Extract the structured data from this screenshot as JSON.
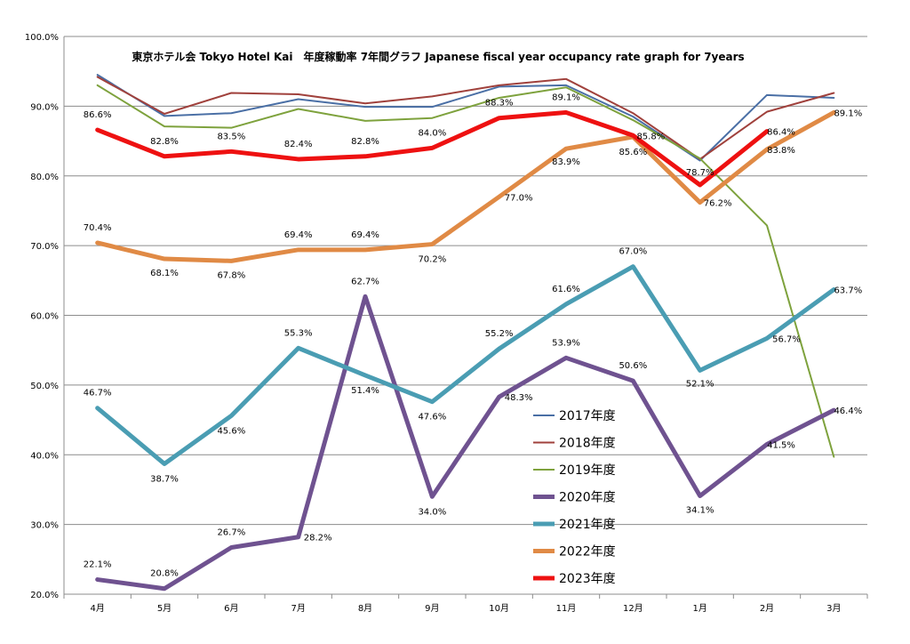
{
  "chart_data": {
    "type": "line",
    "title": "東京ホテル会 Tokyo Hotel Kai　年度稼動率 7年間グラフ Japanese fiscal year occupancy rate graph for 7years",
    "xlabel": "",
    "ylabel": "",
    "categories": [
      "4月",
      "5月",
      "6月",
      "7月",
      "8月",
      "9月",
      "10月",
      "11月",
      "12月",
      "1月",
      "2月",
      "3月"
    ],
    "ylim": [
      20,
      100
    ],
    "yticks": [
      "20.0%",
      "30.0%",
      "40.0%",
      "50.0%",
      "60.0%",
      "70.0%",
      "80.0%",
      "90.0%",
      "100.0%"
    ],
    "grid": true,
    "legend_position": "center-right",
    "series": [
      {
        "name": "2017年度",
        "color": "#4a6fa5",
        "width": 2,
        "values": [
          94.5,
          88.6,
          89.0,
          91.0,
          89.9,
          89.9,
          92.8,
          93.0,
          88.5,
          82.2,
          91.6,
          91.2
        ],
        "labels": []
      },
      {
        "name": "2018年度",
        "color": "#a0413c",
        "width": 2,
        "values": [
          94.2,
          88.9,
          91.9,
          91.7,
          90.4,
          91.4,
          93.0,
          93.9,
          89.0,
          82.4,
          89.2,
          91.9
        ],
        "labels": []
      },
      {
        "name": "2019年度",
        "color": "#7ea23d",
        "width": 2,
        "values": [
          93.0,
          87.1,
          86.9,
          89.6,
          87.9,
          88.3,
          91.2,
          92.7,
          88.0,
          82.5,
          72.9,
          39.7
        ],
        "labels": []
      },
      {
        "name": "2020年度",
        "color": "#6f5290",
        "width": 5,
        "values": [
          22.1,
          20.8,
          26.7,
          28.2,
          62.7,
          34.0,
          48.3,
          53.9,
          50.6,
          34.1,
          41.5,
          46.4
        ],
        "labels": [
          "22.1%",
          "20.8%",
          "26.7%",
          "28.2%",
          "62.7%",
          "34.0%",
          "48.3%",
          "53.9%",
          "50.6%",
          "34.1%",
          "41.5%",
          "46.4%"
        ]
      },
      {
        "name": "2021年度",
        "color": "#4a9db3",
        "width": 5,
        "values": [
          46.7,
          38.7,
          45.6,
          55.3,
          51.4,
          47.6,
          55.2,
          61.6,
          67.0,
          52.1,
          56.7,
          63.7
        ],
        "labels": [
          "46.7%",
          "38.7%",
          "45.6%",
          "55.3%",
          "51.4%",
          "47.6%",
          "55.2%",
          "61.6%",
          "67.0%",
          "52.1%",
          "56.7%",
          "63.7%"
        ]
      },
      {
        "name": "2022年度",
        "color": "#e08a45",
        "width": 5,
        "values": [
          70.4,
          68.1,
          67.8,
          69.4,
          69.4,
          70.2,
          77.0,
          83.9,
          85.6,
          76.2,
          83.8,
          89.1
        ],
        "labels": [
          "70.4%",
          "68.1%",
          "67.8%",
          "69.4%",
          "69.4%",
          "70.2%",
          "77.0%",
          "83.9%",
          "85.6%",
          "76.2%",
          "83.8%",
          "89.1%"
        ]
      },
      {
        "name": "2023年度",
        "color": "#ee1111",
        "width": 5,
        "values": [
          86.6,
          82.8,
          83.5,
          82.4,
          82.8,
          84.0,
          88.3,
          89.1,
          85.8,
          78.7,
          86.4,
          null
        ],
        "labels": [
          "86.6%",
          "82.8%",
          "83.5%",
          "82.4%",
          "82.8%",
          "84.0%",
          "88.3%",
          "89.1%",
          "85.8%",
          "78.7%",
          "86.4%",
          ""
        ]
      }
    ]
  }
}
